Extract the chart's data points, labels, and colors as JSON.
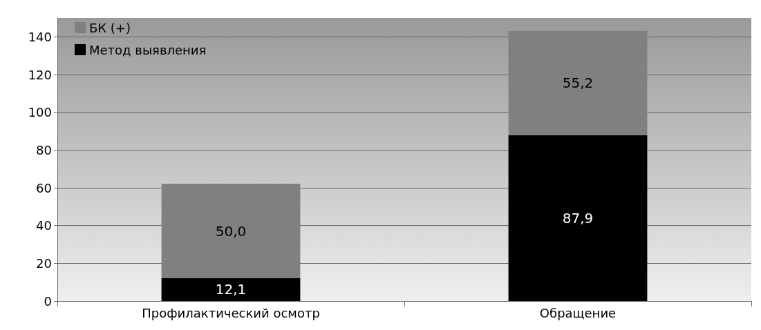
{
  "chart_data": {
    "type": "bar",
    "stacked": true,
    "categories": [
      "Профилактический осмотр",
      "Обращение"
    ],
    "series": [
      {
        "name": "Метод выявления",
        "color": "#000000",
        "values": [
          12.1,
          87.9
        ],
        "value_labels": [
          "12,1",
          "87,9"
        ]
      },
      {
        "name": "БК (+)",
        "color": "#808080",
        "values": [
          50.0,
          55.2
        ],
        "value_labels": [
          "50,0",
          "55,2"
        ]
      }
    ],
    "ylim": [
      0,
      150
    ],
    "yticks": [
      0,
      20,
      40,
      60,
      80,
      100,
      120,
      140
    ],
    "grid": "y",
    "legend": "top left"
  }
}
